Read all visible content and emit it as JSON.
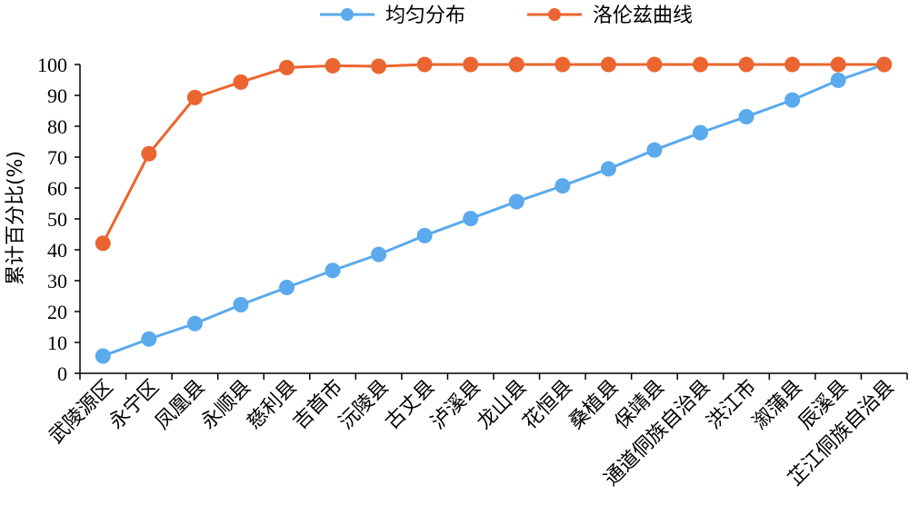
{
  "chart_data": {
    "type": "line",
    "title": "",
    "xlabel": "",
    "ylabel": "累计百分比(%)",
    "ylim": [
      0,
      100
    ],
    "yticks": [
      0,
      10,
      20,
      30,
      40,
      50,
      60,
      70,
      80,
      90,
      100
    ],
    "grid": false,
    "legend_position": "top-center",
    "categories": [
      "武陵源区",
      "永宁区",
      "凤凰县",
      "永顺县",
      "慈利县",
      "吉首市",
      "沅陵县",
      "古丈县",
      "泸溪县",
      "龙山县",
      "花恒县",
      "桑植县",
      "保靖县",
      "通道侗族自治县",
      "洪江市",
      "溆蒲县",
      "辰溪县",
      "芷江侗族自治县"
    ],
    "series": [
      {
        "name": "均匀分布",
        "color": "#5aaaed",
        "values": [
          5.6,
          11.1,
          16.1,
          22.2,
          27.8,
          33.3,
          38.5,
          44.6,
          50.1,
          55.6,
          60.7,
          66.2,
          72.3,
          77.9,
          83.1,
          88.5,
          94.9,
          100
        ]
      },
      {
        "name": "洛伦兹曲线",
        "color": "#eb6530",
        "values": [
          42.1,
          71.1,
          89.3,
          94.3,
          99.0,
          99.6,
          99.4,
          100,
          100,
          100,
          100,
          100,
          100,
          100,
          100,
          100,
          100,
          100
        ]
      }
    ]
  }
}
